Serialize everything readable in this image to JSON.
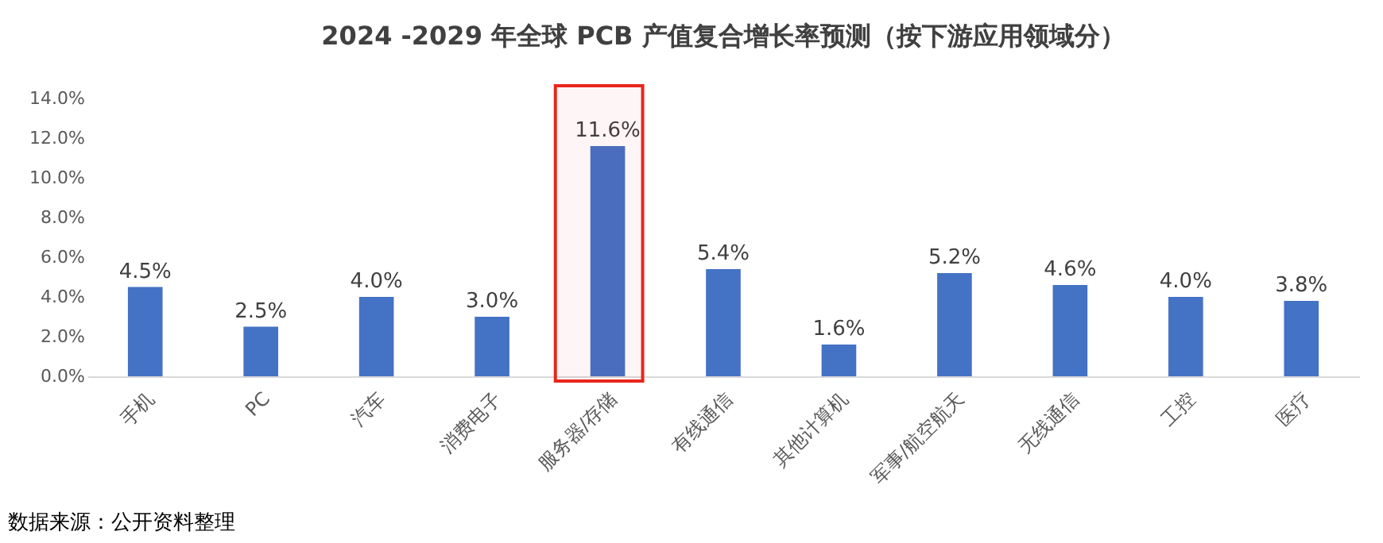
{
  "chart_data": {
    "type": "bar",
    "title": "2024 -2029 年全球 PCB 产值复合增长率预测（按下游应用领域分）",
    "categories": [
      "手机",
      "PC",
      "汽车",
      "消费电子",
      "服务器/存储",
      "有线通信",
      "其他计算机",
      "军事/航空航天",
      "无线通信",
      "工控",
      "医疗"
    ],
    "values": [
      4.5,
      2.5,
      4.0,
      3.0,
      11.6,
      5.4,
      1.6,
      5.2,
      4.6,
      4.0,
      3.8
    ],
    "value_labels": [
      "4.5%",
      "2.5%",
      "4.0%",
      "3.0%",
      "11.6%",
      "5.4%",
      "1.6%",
      "5.2%",
      "4.6%",
      "4.0%",
      "3.8%"
    ],
    "color": "#4472c4",
    "ylim": [
      0,
      14
    ],
    "yticks": [
      {
        "value": 0,
        "label": "0.0%"
      },
      {
        "value": 2,
        "label": "2.0%"
      },
      {
        "value": 4,
        "label": "4.0%"
      },
      {
        "value": 6,
        "label": "6.0%"
      },
      {
        "value": 8,
        "label": "8.0%"
      },
      {
        "value": 10,
        "label": "10.0%"
      },
      {
        "value": 12,
        "label": "12.0%"
      },
      {
        "value": 14,
        "label": "14.0%"
      }
    ],
    "bands": [
      {
        "axis": "x",
        "from": "服务器/存储",
        "to": "服务器/存储",
        "color": "#e8261c"
      }
    ],
    "annotations": [
      "数据来源：公开资料整理"
    ],
    "grid": false
  }
}
